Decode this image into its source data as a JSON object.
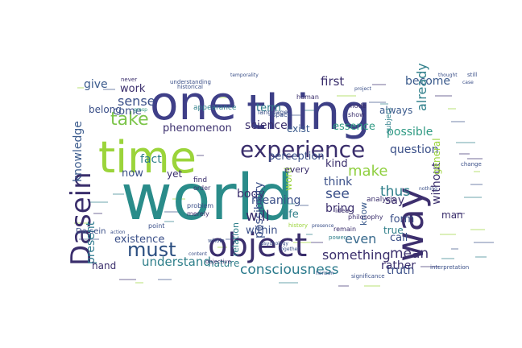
{
  "cloud": {
    "words": [
      {
        "text": "world",
        "color": "#2a8c8a",
        "rotate": false
      },
      {
        "text": "one",
        "color": "#3f3f88",
        "rotate": false
      },
      {
        "text": "thing",
        "color": "#3d3f86",
        "rotate": false
      },
      {
        "text": "time",
        "color": "#9bd43a",
        "rotate": false
      },
      {
        "text": "way",
        "color": "#3d2f6e",
        "rotate": true
      },
      {
        "text": "Dasein",
        "color": "#3a2e6c",
        "rotate": true
      },
      {
        "text": "object",
        "color": "#3a2e6c",
        "rotate": false
      },
      {
        "text": "experience",
        "color": "#3a2e6c",
        "rotate": false
      },
      {
        "text": "must",
        "color": "#2b4e80",
        "rotate": false
      },
      {
        "text": "consciousness",
        "color": "#2a7a8c",
        "rotate": false
      },
      {
        "text": "take",
        "color": "#7dc54b",
        "rotate": false
      },
      {
        "text": "present",
        "color": "#2e7a8e",
        "rotate": true
      },
      {
        "text": "knowledge",
        "color": "#3a5a8c",
        "rotate": true
      },
      {
        "text": "make",
        "color": "#8fcf3f",
        "rotate": false
      },
      {
        "text": "even",
        "color": "#37698c",
        "rotate": false
      },
      {
        "text": "mean",
        "color": "#3a2e6c",
        "rotate": false
      },
      {
        "text": "see",
        "color": "#3a4f88",
        "rotate": false
      },
      {
        "text": "thus",
        "color": "#2f7f8a",
        "rotate": false
      },
      {
        "text": "will",
        "color": "#3a2e6c",
        "rotate": false
      },
      {
        "text": "something",
        "color": "#3a2e6c",
        "rotate": false
      },
      {
        "text": "understand",
        "color": "#2f7f8a",
        "rotate": false
      },
      {
        "text": "truth",
        "color": "#3a4f88",
        "rotate": false
      },
      {
        "text": "fact",
        "color": "#2f7f8a",
        "rotate": false
      },
      {
        "text": "sense",
        "color": "#3a4f88",
        "rotate": false
      },
      {
        "text": "give",
        "color": "#3a5a8c",
        "rotate": false
      },
      {
        "text": "body",
        "color": "#3a2e6c",
        "rotate": false
      },
      {
        "text": "meaning",
        "color": "#3a4f88",
        "rotate": false
      },
      {
        "text": "phenomenon",
        "color": "#3a2e6c",
        "rotate": false
      },
      {
        "text": "first",
        "color": "#3a2e6c",
        "rotate": false
      },
      {
        "text": "become",
        "color": "#3a5a8c",
        "rotate": false
      },
      {
        "text": "possible",
        "color": "#2f9a83",
        "rotate": false
      },
      {
        "text": "question",
        "color": "#3a4f88",
        "rotate": false
      },
      {
        "text": "science",
        "color": "#3a2e6c",
        "rotate": false
      },
      {
        "text": "perception",
        "color": "#3a4f88",
        "rotate": false
      },
      {
        "text": "essence",
        "color": "#2f9a83",
        "rotate": false
      },
      {
        "text": "exist",
        "color": "#3a5a8c",
        "rotate": false
      },
      {
        "text": "term",
        "color": "#2f7f8a",
        "rotate": false
      },
      {
        "text": "think",
        "color": "#3a4f88",
        "rotate": false
      },
      {
        "text": "kind",
        "color": "#3a2e6c",
        "rotate": false
      },
      {
        "text": "bring",
        "color": "#3a2e6c",
        "rotate": false
      },
      {
        "text": "life",
        "color": "#2f7f8a",
        "rotate": false
      },
      {
        "text": "within",
        "color": "#3a4f88",
        "rotate": false
      },
      {
        "text": "say",
        "color": "#3a2e6c",
        "rotate": false
      },
      {
        "text": "form",
        "color": "#3a4f88",
        "rotate": false
      },
      {
        "text": "call",
        "color": "#3a4f88",
        "rotate": false
      },
      {
        "text": "rather",
        "color": "#3a2e6c",
        "rotate": false
      },
      {
        "text": "true",
        "color": "#2f7f8a",
        "rotate": false
      },
      {
        "text": "existence",
        "color": "#3a4f88",
        "rotate": false
      },
      {
        "text": "nature",
        "color": "#2f7f8a",
        "rotate": false
      },
      {
        "text": "hand",
        "color": "#3a2e6c",
        "rotate": false
      },
      {
        "text": "now",
        "color": "#3a4f88",
        "rotate": false
      },
      {
        "text": "yet",
        "color": "#3a2e6c",
        "rotate": false
      },
      {
        "text": "work",
        "color": "#3a2e6c",
        "rotate": false
      },
      {
        "text": "come",
        "color": "#3a4f88",
        "rotate": false
      },
      {
        "text": "belong",
        "color": "#3a4f88",
        "rotate": false
      },
      {
        "text": "already",
        "color": "#2f7f8a",
        "rotate": true
      },
      {
        "text": "without",
        "color": "#3a2e6c",
        "rotate": true
      },
      {
        "text": "man",
        "color": "#3a2e6c",
        "rotate": false
      },
      {
        "text": "always",
        "color": "#3a5a8c",
        "rotate": false
      },
      {
        "text": "general",
        "color": "#9bd43a",
        "rotate": true
      },
      {
        "text": "know",
        "color": "#3a5a8c",
        "rotate": true
      },
      {
        "text": "relation",
        "color": "#2f7f8a",
        "rotate": true
      },
      {
        "text": "possibility",
        "color": "#3a4f88",
        "rotate": true
      },
      {
        "text": "word",
        "color": "#9bd43a",
        "rotate": true
      },
      {
        "text": "every",
        "color": "#3a2e6c",
        "rotate": false
      },
      {
        "text": "Da sein",
        "color": "#3a4f88",
        "rotate": false
      },
      {
        "text": "subject",
        "color": "#2f7f8a",
        "rotate": true
      },
      {
        "text": "philosophy",
        "color": "#3a2e6c",
        "rotate": false
      },
      {
        "text": "understanding",
        "color": "#3a4f88",
        "rotate": false
      },
      {
        "text": "appearance",
        "color": "#2f7f8a",
        "rotate": false
      },
      {
        "text": "find",
        "color": "#3a2e6c",
        "rotate": false
      },
      {
        "text": "order",
        "color": "#3a2e6c",
        "rotate": false
      },
      {
        "text": "problem",
        "color": "#3a4f88",
        "rotate": false
      },
      {
        "text": "merely",
        "color": "#3a2e6c",
        "rotate": false
      },
      {
        "text": "language",
        "color": "#3a4f88",
        "rotate": false
      },
      {
        "text": "space",
        "color": "#3a4f88",
        "rotate": false
      },
      {
        "text": "mode",
        "color": "#3a2e6c",
        "rotate": false
      },
      {
        "text": "show",
        "color": "#3a2e6c",
        "rotate": false
      },
      {
        "text": "human",
        "color": "#3a2e6c",
        "rotate": false
      },
      {
        "text": "remain",
        "color": "#3a2e6c",
        "rotate": false
      },
      {
        "text": "idea",
        "color": "#3a2e6c",
        "rotate": false
      },
      {
        "text": "analysis",
        "color": "#3a2e6c",
        "rotate": false
      },
      {
        "text": "power",
        "color": "#2f7f8a",
        "rotate": false
      },
      {
        "text": "whole",
        "color": "#3a4f88",
        "rotate": false
      },
      {
        "text": "point",
        "color": "#3a4f88",
        "rotate": false
      },
      {
        "text": "history",
        "color": "#9bd43a",
        "rotate": false
      },
      {
        "text": "never",
        "color": "#3a2e6c",
        "rotate": false
      },
      {
        "text": "still",
        "color": "#3a4f88",
        "rotate": false
      },
      {
        "text": "thought",
        "color": "#3a4f88",
        "rotate": false
      },
      {
        "text": "temporality",
        "color": "#3a4f88",
        "rotate": false
      },
      {
        "text": "historical",
        "color": "#3a4f88",
        "rotate": false
      },
      {
        "text": "objective",
        "color": "#3a2e6c",
        "rotate": false
      },
      {
        "text": "horizon",
        "color": "#3a4f88",
        "rotate": false
      },
      {
        "text": "significance",
        "color": "#3a4f88",
        "rotate": false
      },
      {
        "text": "interpretation",
        "color": "#3a4f88",
        "rotate": false
      },
      {
        "text": "nothing",
        "color": "#3a4f88",
        "rotate": false
      },
      {
        "text": "change",
        "color": "#3a4f88",
        "rotate": false
      },
      {
        "text": "grasp",
        "color": "#2f9a83",
        "rotate": false
      },
      {
        "text": "presence",
        "color": "#3a4f88",
        "rotate": false
      },
      {
        "text": "psychology",
        "color": "#3a4f88",
        "rotate": false
      },
      {
        "text": "together",
        "color": "#3a4f88",
        "rotate": false
      },
      {
        "text": "content",
        "color": "#3a4f88",
        "rotate": false
      },
      {
        "text": "action",
        "color": "#3a4f88",
        "rotate": false
      },
      {
        "text": "case",
        "color": "#3a4f88",
        "rotate": false
      },
      {
        "text": "project",
        "color": "#3a4f88",
        "rotate": false
      },
      {
        "text": "another",
        "color": "#3a4f88",
        "rotate": false
      },
      {
        "text": "certain",
        "color": "#3a4f88",
        "rotate": false
      }
    ]
  }
}
